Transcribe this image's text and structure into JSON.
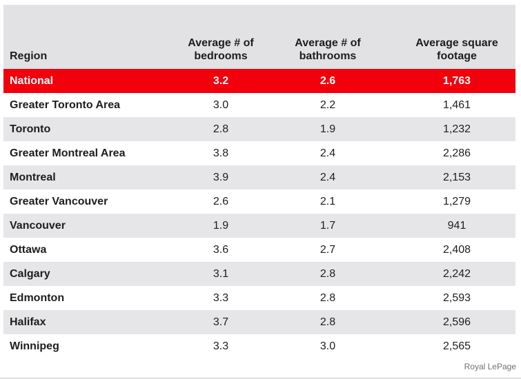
{
  "chart_data": {
    "type": "table",
    "columns": [
      "Region",
      "Average # of bedrooms",
      "Average # of bathrooms",
      "Average square footage"
    ],
    "header": {
      "region": "Region",
      "bedrooms": "Average # of\nbedrooms",
      "bathrooms": "Average # of\nbathrooms",
      "sqft": "Average square\nfootage"
    },
    "highlight_row": "National",
    "rows": [
      {
        "region": "National",
        "bedrooms": "3.2",
        "bathrooms": "2.6",
        "sqft": "1,763"
      },
      {
        "region": "Greater Toronto Area",
        "bedrooms": "3.0",
        "bathrooms": "2.2",
        "sqft": "1,461"
      },
      {
        "region": "Toronto",
        "bedrooms": "2.8",
        "bathrooms": "1.9",
        "sqft": "1,232"
      },
      {
        "region": "Greater Montreal Area",
        "bedrooms": "3.8",
        "bathrooms": "2.4",
        "sqft": "2,286"
      },
      {
        "region": "Montreal",
        "bedrooms": "3.9",
        "bathrooms": "2.4",
        "sqft": "2,153"
      },
      {
        "region": "Greater Vancouver",
        "bedrooms": "2.6",
        "bathrooms": "2.1",
        "sqft": "1,279"
      },
      {
        "region": "Vancouver",
        "bedrooms": "1.9",
        "bathrooms": "1.7",
        "sqft": "941"
      },
      {
        "region": "Ottawa",
        "bedrooms": "3.6",
        "bathrooms": "2.7",
        "sqft": "2,408"
      },
      {
        "region": "Calgary",
        "bedrooms": "3.1",
        "bathrooms": "2.8",
        "sqft": "2,242"
      },
      {
        "region": "Edmonton",
        "bedrooms": "3.3",
        "bathrooms": "2.8",
        "sqft": "2,593"
      },
      {
        "region": "Halifax",
        "bedrooms": "3.7",
        "bathrooms": "2.8",
        "sqft": "2,596"
      },
      {
        "region": "Winnipeg",
        "bedrooms": "3.3",
        "bathrooms": "3.0",
        "sqft": "2,565"
      }
    ],
    "source": "Royal LePage"
  },
  "credit": "Royal LePage",
  "colors": {
    "highlight_red": "#f2000c",
    "header_gray": "#e2e2e4",
    "stripe_gray": "#e6e6e8",
    "text_dark": "#1d1d1f",
    "credit_gray": "#6e6f72",
    "national_text": "#ffffff"
  }
}
